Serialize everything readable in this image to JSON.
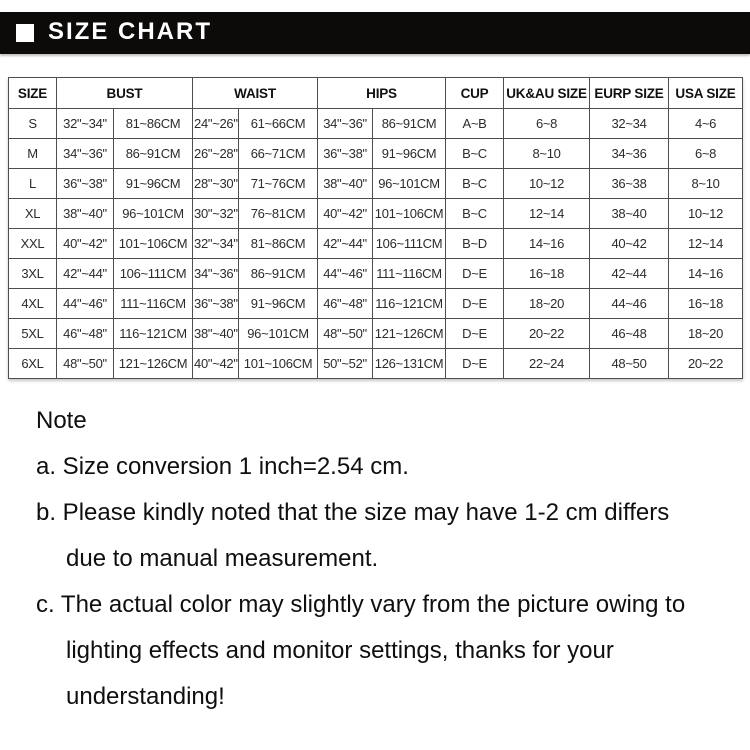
{
  "header": {
    "title": "SIZE CHART"
  },
  "table": {
    "columns": [
      {
        "label": "SIZE",
        "colspan": 1
      },
      {
        "label": "BUST",
        "colspan": 2
      },
      {
        "label": "WAIST",
        "colspan": 2
      },
      {
        "label": "HIPS",
        "colspan": 2
      },
      {
        "label": "CUP",
        "colspan": 1
      },
      {
        "label": "UK&AU SIZE",
        "colspan": 1
      },
      {
        "label": "EURP SIZE",
        "colspan": 1
      },
      {
        "label": "USA SIZE",
        "colspan": 1
      }
    ],
    "rows": [
      [
        "S",
        "32\"~34\"",
        "81~86CM",
        "24\"~26\"",
        "61~66CM",
        "34\"~36\"",
        "86~91CM",
        "A~B",
        "6~8",
        "32~34",
        "4~6"
      ],
      [
        "M",
        "34\"~36\"",
        "86~91CM",
        "26\"~28\"",
        "66~71CM",
        "36\"~38\"",
        "91~96CM",
        "B~C",
        "8~10",
        "34~36",
        "6~8"
      ],
      [
        "L",
        "36\"~38\"",
        "91~96CM",
        "28\"~30\"",
        "71~76CM",
        "38\"~40\"",
        "96~101CM",
        "B~C",
        "10~12",
        "36~38",
        "8~10"
      ],
      [
        "XL",
        "38\"~40\"",
        "96~101CM",
        "30\"~32\"",
        "76~81CM",
        "40\"~42\"",
        "101~106CM",
        "B~C",
        "12~14",
        "38~40",
        "10~12"
      ],
      [
        "XXL",
        "40\"~42\"",
        "101~106CM",
        "32\"~34\"",
        "81~86CM",
        "42\"~44\"",
        "106~111CM",
        "B~D",
        "14~16",
        "40~42",
        "12~14"
      ],
      [
        "3XL",
        "42\"~44\"",
        "106~111CM",
        "34\"~36\"",
        "86~91CM",
        "44\"~46\"",
        "111~116CM",
        "D~E",
        "16~18",
        "42~44",
        "14~16"
      ],
      [
        "4XL",
        "44\"~46\"",
        "111~116CM",
        "36\"~38\"",
        "91~96CM",
        "46\"~48\"",
        "116~121CM",
        "D~E",
        "18~20",
        "44~46",
        "16~18"
      ],
      [
        "5XL",
        "46\"~48\"",
        "116~121CM",
        "38\"~40\"",
        "96~101CM",
        "48\"~50\"",
        "121~126CM",
        "D~E",
        "20~22",
        "46~48",
        "18~20"
      ],
      [
        "6XL",
        "48\"~50\"",
        "121~126CM",
        "40\"~42\"",
        "101~106CM",
        "50\"~52\"",
        "126~131CM",
        "D~E",
        "22~24",
        "48~50",
        "20~22"
      ]
    ]
  },
  "notes": {
    "heading": "Note",
    "lines": [
      {
        "text": "a. Size conversion 1 inch=2.54 cm.",
        "indent": false
      },
      {
        "text": "b. Please kindly noted that the size may have 1-2 cm differs",
        "indent": false
      },
      {
        "text": "due to manual measurement.",
        "indent": true
      },
      {
        "text": "c. The actual color may slightly vary from the picture owing to",
        "indent": false
      },
      {
        "text": "lighting effects and monitor settings, thanks for your",
        "indent": true
      },
      {
        "text": "understanding!",
        "indent": true
      }
    ]
  },
  "colors": {
    "title_bar_background": "#0d0b0a",
    "table_border": "#4e4e4e",
    "text": "#0f0f0f"
  }
}
